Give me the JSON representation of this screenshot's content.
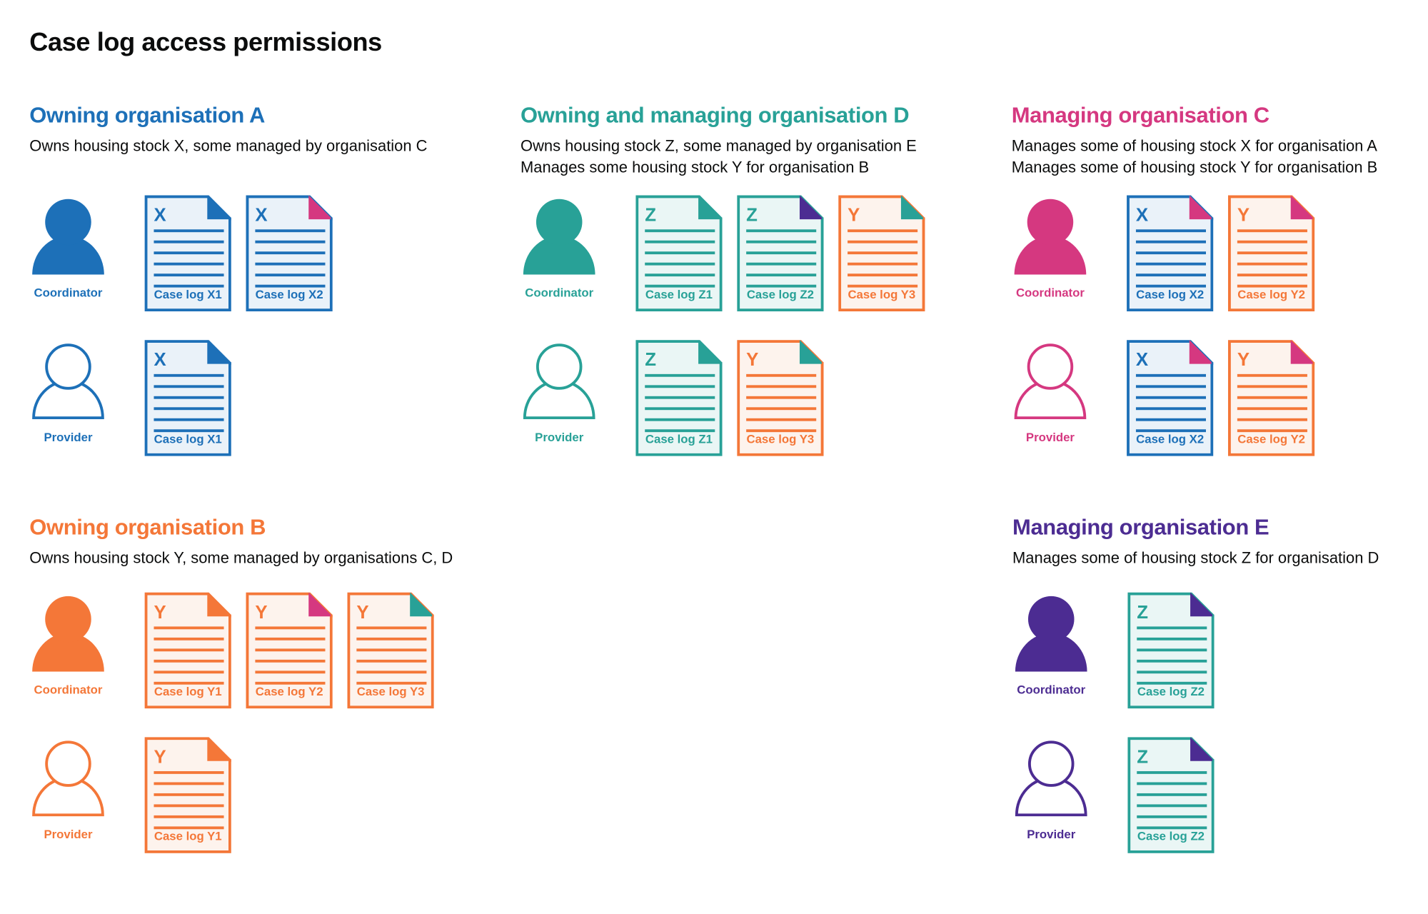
{
  "title": "Case log access permissions",
  "colors": {
    "blue": "#1d70b8",
    "teal": "#28a197",
    "pink": "#d53880",
    "orange": "#f47738",
    "purple": "#4c2c92",
    "tint_blue": "#eaf2f9",
    "tint_teal": "#eaf6f5",
    "tint_orange": "#fdf3ed"
  },
  "sections": [
    {
      "heading": "Owning organisation A",
      "color": "blue",
      "description": [
        "Owns housing stock X, some managed by organisation C"
      ],
      "roles": [
        {
          "label": "Coordinator",
          "icon": "person-filled-icon",
          "docs": [
            {
              "letter": "X",
              "label": "Case log X1",
              "color": "blue",
              "corner": "blue"
            },
            {
              "letter": "X",
              "label": "Case log X2",
              "color": "blue",
              "corner": "pink"
            }
          ]
        },
        {
          "label": "Provider",
          "icon": "person-outline-icon",
          "docs": [
            {
              "letter": "X",
              "label": "Case log X1",
              "color": "blue",
              "corner": "blue"
            }
          ]
        }
      ]
    },
    {
      "heading": "Owning and managing organisation D",
      "color": "teal",
      "description": [
        "Owns housing stock Z, some managed by organisation E",
        "Manages some housing stock Y for organisation B"
      ],
      "roles": [
        {
          "label": "Coordinator",
          "icon": "person-filled-icon",
          "docs": [
            {
              "letter": "Z",
              "label": "Case log Z1",
              "color": "teal",
              "corner": "teal"
            },
            {
              "letter": "Z",
              "label": "Case log Z2",
              "color": "teal",
              "corner": "purple"
            },
            {
              "letter": "Y",
              "label": "Case log Y3",
              "color": "orange",
              "corner": "teal"
            }
          ]
        },
        {
          "label": "Provider",
          "icon": "person-outline-icon",
          "docs": [
            {
              "letter": "Z",
              "label": "Case log Z1",
              "color": "teal",
              "corner": "teal"
            },
            {
              "letter": "Y",
              "label": "Case log Y3",
              "color": "orange",
              "corner": "teal"
            }
          ]
        }
      ]
    },
    {
      "heading": "Managing organisation C",
      "color": "pink",
      "description": [
        "Manages some of housing stock X for organisation A",
        "Manages some of housing stock Y for organisation B"
      ],
      "roles": [
        {
          "label": "Coordinator",
          "icon": "person-filled-icon",
          "docs": [
            {
              "letter": "X",
              "label": "Case log X2",
              "color": "blue",
              "corner": "pink"
            },
            {
              "letter": "Y",
              "label": "Case log Y2",
              "color": "orange",
              "corner": "pink"
            }
          ]
        },
        {
          "label": "Provider",
          "icon": "person-outline-icon",
          "docs": [
            {
              "letter": "X",
              "label": "Case log X2",
              "color": "blue",
              "corner": "pink"
            },
            {
              "letter": "Y",
              "label": "Case log Y2",
              "color": "orange",
              "corner": "pink"
            }
          ]
        }
      ]
    },
    {
      "heading": "Owning organisation B",
      "color": "orange",
      "description": [
        "Owns housing stock Y, some managed by organisations C, D"
      ],
      "roles": [
        {
          "label": "Coordinator",
          "icon": "person-filled-icon",
          "docs": [
            {
              "letter": "Y",
              "label": "Case log Y1",
              "color": "orange",
              "corner": "orange"
            },
            {
              "letter": "Y",
              "label": "Case log Y2",
              "color": "orange",
              "corner": "pink"
            },
            {
              "letter": "Y",
              "label": "Case log Y3",
              "color": "orange",
              "corner": "teal"
            }
          ]
        },
        {
          "label": "Provider",
          "icon": "person-outline-icon",
          "docs": [
            {
              "letter": "Y",
              "label": "Case log Y1",
              "color": "orange",
              "corner": "orange"
            }
          ]
        }
      ]
    },
    {
      "heading": "Managing organisation E",
      "color": "purple",
      "description": [
        "Manages some of housing stock Z for organisation D"
      ],
      "roles": [
        {
          "label": "Coordinator",
          "icon": "person-filled-icon",
          "docs": [
            {
              "letter": "Z",
              "label": "Case log Z2",
              "color": "teal",
              "corner": "purple"
            }
          ]
        },
        {
          "label": "Provider",
          "icon": "person-outline-icon",
          "docs": [
            {
              "letter": "Z",
              "label": "Case log Z2",
              "color": "teal",
              "corner": "purple"
            }
          ]
        }
      ]
    }
  ]
}
